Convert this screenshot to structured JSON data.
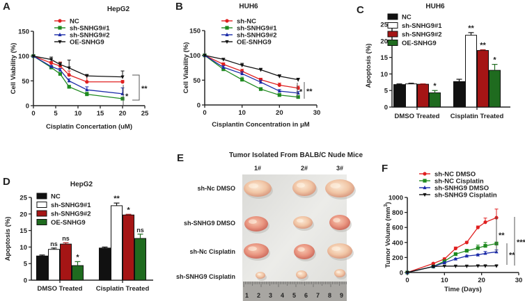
{
  "chart_data": [
    {
      "panel": "A",
      "type": "line",
      "title": "HepG2",
      "xlabel": "Cisplatin Concertation (uM)",
      "ylabel": "Cell Viability (%)",
      "xlim": [
        0,
        25
      ],
      "ylim": [
        0,
        150
      ],
      "xticks": [
        0,
        5,
        10,
        15,
        20,
        25
      ],
      "yticks": [
        0,
        50,
        100,
        150
      ],
      "x": [
        0,
        4,
        6,
        8,
        12,
        20
      ],
      "series": [
        {
          "name": "NC",
          "color": "#e02020",
          "marker": "circle",
          "values": [
            100,
            86,
            80,
            62,
            48,
            48
          ],
          "errors": [
            0,
            3,
            8,
            8,
            12,
            3
          ]
        },
        {
          "name": "sh-SNHG9#1",
          "color": "#1f8a1f",
          "marker": "square",
          "values": [
            100,
            77,
            64,
            38,
            23,
            14
          ],
          "errors": [
            0,
            2,
            3,
            3,
            4,
            3
          ]
        },
        {
          "name": "sh-SNHG9#2",
          "color": "#1a2aa8",
          "marker": "triangle-up",
          "values": [
            100,
            79,
            72,
            50,
            32,
            24
          ],
          "errors": [
            0,
            2,
            3,
            4,
            6,
            12
          ]
        },
        {
          "name": "OE-SNHG9",
          "color": "#111111",
          "marker": "triangle-down",
          "values": [
            100,
            93,
            83,
            76,
            60,
            58
          ],
          "errors": [
            0,
            5,
            4,
            16,
            3,
            12
          ]
        }
      ],
      "annotations": [
        "*",
        "**"
      ],
      "legend": "top"
    },
    {
      "panel": "B",
      "type": "line",
      "title": "HUH6",
      "xlabel": "Cisplantin Concentration in μM",
      "ylabel": "Cell Viability (%)",
      "xlim": [
        0,
        30
      ],
      "ylim": [
        0,
        150
      ],
      "xticks": [
        0,
        10,
        20,
        30
      ],
      "yticks": [
        0,
        50,
        100,
        150
      ],
      "x": [
        0,
        5,
        10,
        15,
        20,
        25
      ],
      "series": [
        {
          "name": "sh-NC",
          "color": "#e02020",
          "marker": "circle",
          "values": [
            100,
            82,
            68,
            51,
            40,
            34
          ],
          "errors": [
            0,
            3,
            4,
            3,
            4,
            4
          ]
        },
        {
          "name": "sh-SNHG9#1",
          "color": "#1f8a1f",
          "marker": "square",
          "values": [
            100,
            72,
            51,
            32,
            20,
            16
          ],
          "errors": [
            0,
            3,
            5,
            3,
            3,
            3
          ]
        },
        {
          "name": "sh-SNHG9#2",
          "color": "#1a2aa8",
          "marker": "triangle-up",
          "values": [
            100,
            76,
            63,
            46,
            28,
            24
          ],
          "errors": [
            0,
            3,
            4,
            4,
            3,
            3
          ]
        },
        {
          "name": "OE-SNHG9",
          "color": "#111111",
          "marker": "triangle-down",
          "values": [
            100,
            92,
            80,
            71,
            58,
            51
          ],
          "errors": [
            0,
            2,
            4,
            3,
            3,
            3
          ]
        }
      ],
      "annotations": [
        "*",
        "**"
      ],
      "legend": "top"
    },
    {
      "panel": "C",
      "type": "bar",
      "title": "HUH6",
      "xlabel": "",
      "ylabel": "Apoptosis  (%)",
      "ylim": [
        0,
        25
      ],
      "yticks": [
        0,
        5,
        10,
        15,
        20,
        25
      ],
      "categories": [
        "DMSO Treated",
        "Cisplatin Treated"
      ],
      "series": [
        {
          "name": "NC",
          "color": "#111111",
          "values": [
            6.8,
            7.7
          ],
          "errors": [
            0.2,
            0.7
          ]
        },
        {
          "name": "sh-SNHG9#1",
          "color": "#ffffff",
          "values": [
            7.0,
            21.7
          ],
          "errors": [
            0.2,
            0.8
          ]
        },
        {
          "name": "sh-SNHG9#2",
          "color": "#a51515",
          "values": [
            6.9,
            17.1
          ],
          "errors": [
            0.1,
            0.2
          ]
        },
        {
          "name": "OE-SNHG9",
          "color": "#1f6b1f",
          "values": [
            4.3,
            11.1
          ],
          "errors": [
            0.7,
            1.8
          ]
        }
      ],
      "significance": [
        [
          "",
          "",
          "",
          "*"
        ],
        [
          "",
          "**",
          "**",
          "*"
        ]
      ],
      "legend": "top-left"
    },
    {
      "panel": "D",
      "type": "bar",
      "title": "HepG2",
      "xlabel": "",
      "ylabel": "Apoptosis (%)",
      "ylim": [
        0,
        25
      ],
      "yticks": [
        0,
        5,
        10,
        15,
        20,
        25
      ],
      "categories": [
        "DMSO Treated",
        "Cisplatin Treated"
      ],
      "series": [
        {
          "name": "NC",
          "color": "#111111",
          "values": [
            7.3,
            9.7
          ],
          "errors": [
            0.3,
            0.3
          ]
        },
        {
          "name": "sh-SNHG9#1",
          "color": "#ffffff",
          "values": [
            9.3,
            22.5
          ],
          "errors": [
            0.4,
            0.8
          ]
        },
        {
          "name": "sh-SNHG9#2",
          "color": "#a51515",
          "values": [
            10.9,
            19.7
          ],
          "errors": [
            0.4,
            0.2
          ]
        },
        {
          "name": "OE-SNHG9",
          "color": "#1f6b1f",
          "values": [
            4.4,
            12.6
          ],
          "errors": [
            1.2,
            1.3
          ]
        }
      ],
      "significance": [
        [
          "",
          "ns",
          "ns",
          "*"
        ],
        [
          "",
          "**",
          "*",
          "ns"
        ]
      ],
      "legend": "top-left"
    },
    {
      "panel": "F",
      "type": "line",
      "title": "",
      "xlabel": "Time (Days)",
      "ylabel": "Tumor Volume (mm3)",
      "xlim": [
        0,
        30
      ],
      "ylim": [
        0,
        1000
      ],
      "xticks": [
        0,
        10,
        20,
        30
      ],
      "yticks": [
        0,
        200,
        400,
        600,
        800,
        1000
      ],
      "x": [
        0,
        7,
        10,
        13,
        16,
        19,
        21,
        24
      ],
      "series": [
        {
          "name": "sh-NC DMSO",
          "color": "#e02020",
          "marker": "circle",
          "values": [
            0,
            120,
            180,
            320,
            400,
            600,
            670,
            730
          ],
          "errors": [
            0,
            10,
            15,
            20,
            15,
            20,
            55,
            115
          ]
        },
        {
          "name": "sh-NC Cisplatin",
          "color": "#1f8a1f",
          "marker": "square",
          "values": [
            0,
            80,
            150,
            245,
            290,
            325,
            355,
            385
          ],
          "errors": [
            0,
            8,
            10,
            15,
            15,
            40,
            45,
            20
          ]
        },
        {
          "name": "sh-SNHG9 DMSO",
          "color": "#1a2aa8",
          "marker": "triangle-up",
          "values": [
            0,
            80,
            130,
            180,
            220,
            235,
            255,
            275
          ],
          "errors": [
            0,
            8,
            10,
            10,
            10,
            10,
            25,
            25
          ]
        },
        {
          "name": "sh-SNHG9 Cisplatin",
          "color": "#111111",
          "marker": "triangle-down",
          "values": [
            0,
            80,
            85,
            85,
            85,
            88,
            88,
            88
          ],
          "errors": [
            0,
            4,
            4,
            4,
            4,
            4,
            4,
            4
          ]
        }
      ],
      "annotations": [
        "**",
        "**",
        "***"
      ],
      "legend": "top"
    }
  ],
  "panel_labels": {
    "A": "A",
    "B": "B",
    "C": "C",
    "D": "D",
    "E": "E",
    "F": "F"
  },
  "photo": {
    "title": "Tumor Isolated From BALB/C Nude Mice",
    "columns": [
      "1#",
      "2#",
      "3#"
    ],
    "rows": [
      "sh-Nc DMSO",
      "sh-SNHG9 DMSO",
      "sh-Nc Cisplatin",
      "sh-SNHG9 Cisplatin"
    ],
    "ruler_numbers": [
      "1",
      "2",
      "3",
      "4",
      "5",
      "6",
      "7",
      "8",
      "9"
    ]
  }
}
